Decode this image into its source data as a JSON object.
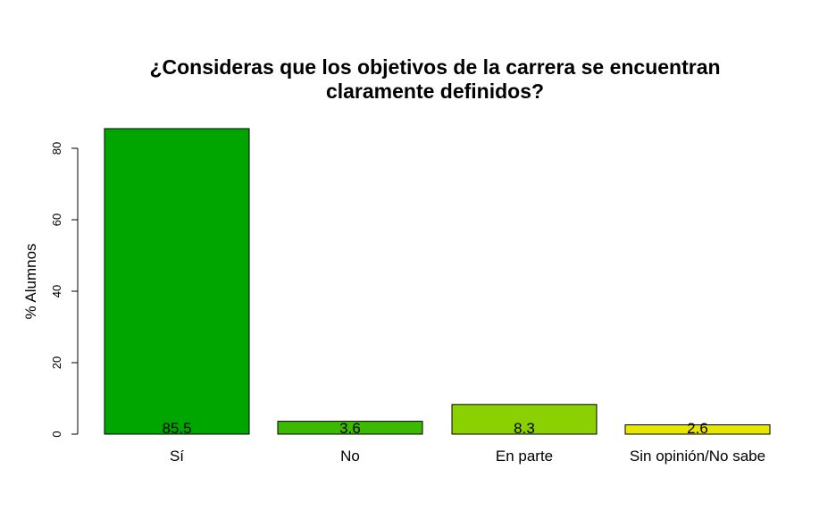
{
  "chart_data": {
    "type": "bar",
    "title_lines": [
      "¿Consideras que los objetivos de la carrera se encuentran",
      "claramente definidos?"
    ],
    "xlabel": "",
    "ylabel": "% Alumnos",
    "categories": [
      "Sí",
      "No",
      "En parte",
      "Sin opinión/No sabe"
    ],
    "values": [
      85.5,
      3.6,
      8.3,
      2.6
    ],
    "value_labels": [
      "85.5",
      "3.6",
      "8.3",
      "2.6"
    ],
    "colors": [
      "#00A600",
      "#3CBA00",
      "#8BD000",
      "#E6E600"
    ],
    "yticks": [
      0,
      20,
      40,
      60,
      80
    ],
    "ylim": [
      0,
      85.5
    ],
    "grid": false,
    "legend": "none"
  }
}
